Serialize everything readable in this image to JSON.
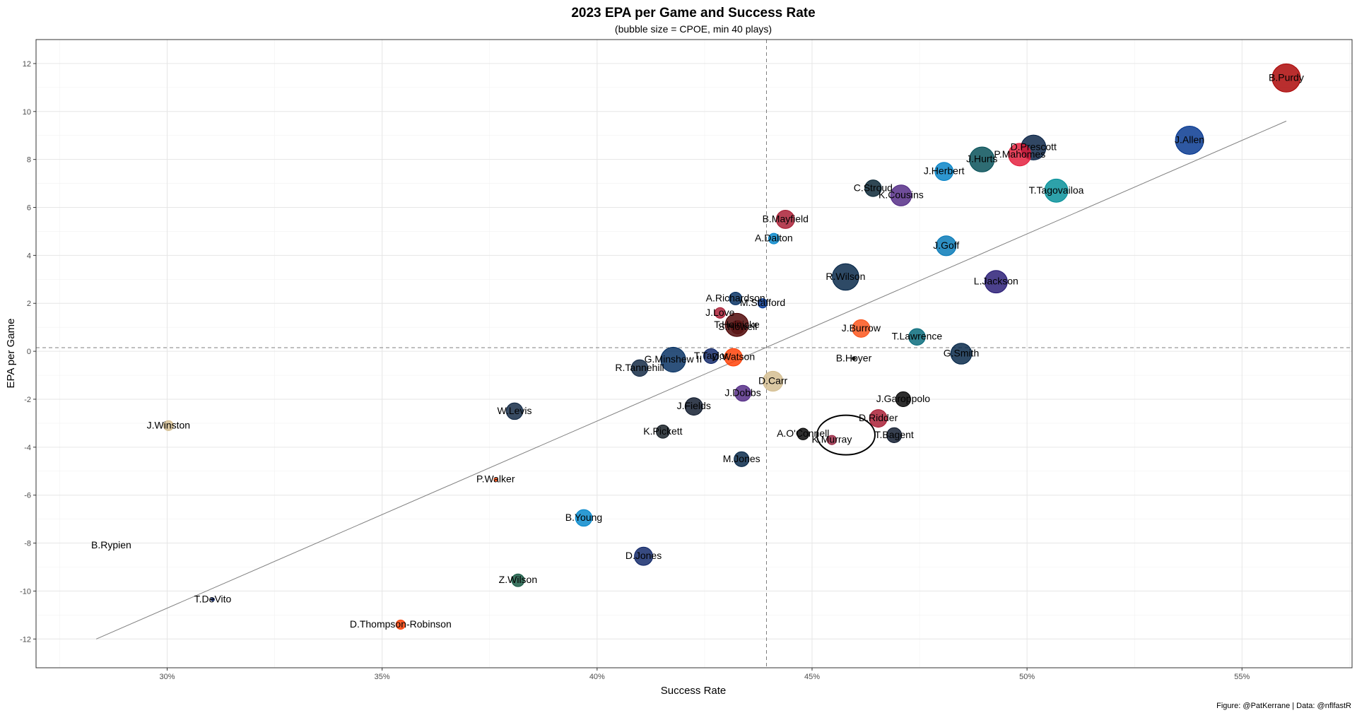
{
  "chart_data": {
    "type": "scatter",
    "title": "2023 EPA per Game and Success Rate",
    "subtitle": "(bubble size = CPOE, min 40 plays)",
    "xlabel": "Success Rate",
    "ylabel": "EPA per Game",
    "caption": "Figure: @PatKerrane | Data: @nflfastR",
    "xlim": [
      0.2695,
      0.5756
    ],
    "ylim": [
      -13.2,
      13.0
    ],
    "x_ticks": [
      0.3,
      0.35,
      0.4,
      0.45,
      0.5,
      0.55
    ],
    "x_tick_labels": [
      "30%",
      "35%",
      "40%",
      "45%",
      "50%",
      "55%"
    ],
    "y_ticks": [
      -12,
      -10,
      -8,
      -6,
      -4,
      -2,
      0,
      2,
      4,
      6,
      8,
      10,
      12
    ],
    "y_tick_labels": [
      "-12",
      "-10",
      "-8",
      "-6",
      "-4",
      "-2",
      "0",
      "2",
      "4",
      "6",
      "8",
      "10",
      "12"
    ],
    "grid": true,
    "legend": "none",
    "mean_lines": {
      "x": 0.4394,
      "y": 0.15
    },
    "trend_line": {
      "x": [
        0.2835,
        0.5603
      ],
      "y": [
        -12.0,
        9.6
      ]
    },
    "highlight": {
      "label": "K.Murray",
      "shape": "ellipse"
    },
    "points": [
      {
        "label": "B.Purdy",
        "x": 0.5603,
        "y": 11.4,
        "cpoe": 8.5,
        "color": "#AA0000"
      },
      {
        "label": "J.Allen",
        "x": 0.5378,
        "y": 8.8,
        "cpoe": 8.5,
        "color": "#00338D"
      },
      {
        "label": "D.Prescott",
        "x": 0.5015,
        "y": 8.5,
        "cpoe": 7.5,
        "color": "#041E42"
      },
      {
        "label": "P.Mahomes",
        "x": 0.4983,
        "y": 8.2,
        "cpoe": 6.8,
        "color": "#E31837"
      },
      {
        "label": "J.Hurts",
        "x": 0.4895,
        "y": 8.0,
        "cpoe": 7.5,
        "color": "#004C54"
      },
      {
        "label": "J.Herbert",
        "x": 0.4807,
        "y": 7.5,
        "cpoe": 5.5,
        "color": "#0080C6"
      },
      {
        "label": "C.Stroud",
        "x": 0.4642,
        "y": 6.8,
        "cpoe": 5.0,
        "color": "#03202F"
      },
      {
        "label": "K.Cousins",
        "x": 0.4707,
        "y": 6.5,
        "cpoe": 6.3,
        "color": "#4F2683"
      },
      {
        "label": "T.Tagovailoa",
        "x": 0.5068,
        "y": 6.7,
        "cpoe": 7.0,
        "color": "#008E97"
      },
      {
        "label": "B.Mayfield",
        "x": 0.4438,
        "y": 5.5,
        "cpoe": 5.5,
        "color": "#A71930"
      },
      {
        "label": "A.Dalton",
        "x": 0.4411,
        "y": 4.7,
        "cpoe": 3.2,
        "color": "#0085CA"
      },
      {
        "label": "J.Goff",
        "x": 0.4812,
        "y": 4.4,
        "cpoe": 6.0,
        "color": "#0076B6"
      },
      {
        "label": "R.Wilson",
        "x": 0.4578,
        "y": 3.1,
        "cpoe": 8.0,
        "color": "#002244"
      },
      {
        "label": "L.Jackson",
        "x": 0.4928,
        "y": 2.9,
        "cpoe": 6.8,
        "color": "#241773"
      },
      {
        "label": "A.Richardson",
        "x": 0.4322,
        "y": 2.2,
        "cpoe": 3.8,
        "color": "#002C5F"
      },
      {
        "label": "M.Stafford",
        "x": 0.4385,
        "y": 2.0,
        "cpoe": 2.8,
        "color": "#003594"
      },
      {
        "label": "J.Love",
        "x": 0.4286,
        "y": 1.6,
        "cpoe": 3.2,
        "color": "#A71930"
      },
      {
        "label": "T.Heinicke",
        "x": 0.4325,
        "y": 1.1,
        "cpoe": 7.0,
        "color": "#4A0000"
      },
      {
        "label": "S.Howell",
        "x": 0.4327,
        "y": 1.0,
        "cpoe": 4.0,
        "color": "#5A1414"
      },
      {
        "label": "J.Burrow",
        "x": 0.4614,
        "y": 0.95,
        "cpoe": 5.3,
        "color": "#FB4F14"
      },
      {
        "label": "T.Lawrence",
        "x": 0.4744,
        "y": 0.6,
        "cpoe": 5.0,
        "color": "#006778"
      },
      {
        "label": "G.Smith",
        "x": 0.4847,
        "y": -0.1,
        "cpoe": 6.3,
        "color": "#002244"
      },
      {
        "label": "B.Hoyer",
        "x": 0.4597,
        "y": -0.3,
        "cpoe": 1.0,
        "color": "#000000"
      },
      {
        "label": "G.Minshew II",
        "x": 0.4177,
        "y": -0.35,
        "cpoe": 7.5,
        "color": "#002C5F"
      },
      {
        "label": "D.Watson",
        "x": 0.4317,
        "y": -0.25,
        "cpoe": 5.3,
        "color": "#FF3C00"
      },
      {
        "label": "T.Taylor",
        "x": 0.4265,
        "y": -0.2,
        "cpoe": 4.5,
        "color": "#0B2265"
      },
      {
        "label": "R.Tannehill",
        "x": 0.4099,
        "y": -0.7,
        "cpoe": 5.0,
        "color": "#0C2340"
      },
      {
        "label": "D.Carr",
        "x": 0.4409,
        "y": -1.25,
        "cpoe": 6.0,
        "color": "#D3BC8D"
      },
      {
        "label": "J.Dobbs",
        "x": 0.4339,
        "y": -1.75,
        "cpoe": 4.8,
        "color": "#4F2683"
      },
      {
        "label": "J.Garoppolo",
        "x": 0.4712,
        "y": -2.0,
        "cpoe": 4.5,
        "color": "#000000"
      },
      {
        "label": "W.Levis",
        "x": 0.3808,
        "y": -2.5,
        "cpoe": 5.0,
        "color": "#0C2340"
      },
      {
        "label": "J.Fields",
        "x": 0.4225,
        "y": -2.3,
        "cpoe": 5.3,
        "color": "#0B162A"
      },
      {
        "label": "D.Ridder",
        "x": 0.4654,
        "y": -2.8,
        "cpoe": 5.3,
        "color": "#A71930"
      },
      {
        "label": "J.Winston",
        "x": 0.3003,
        "y": -3.1,
        "cpoe": 3.0,
        "color": "#D3BC8D"
      },
      {
        "label": "K.Pickett",
        "x": 0.4153,
        "y": -3.35,
        "cpoe": 4.0,
        "color": "#101820"
      },
      {
        "label": "A.O'Connell",
        "x": 0.4479,
        "y": -3.45,
        "cpoe": 3.5,
        "color": "#000000"
      },
      {
        "label": "T.Bagent",
        "x": 0.4691,
        "y": -3.5,
        "cpoe": 4.5,
        "color": "#0B162A"
      },
      {
        "label": "K.Murray",
        "x": 0.4546,
        "y": -3.7,
        "cpoe": 2.8,
        "color": "#97233F"
      },
      {
        "label": "M.Jones",
        "x": 0.4336,
        "y": -4.5,
        "cpoe": 4.5,
        "color": "#002244"
      },
      {
        "label": "P.Walker",
        "x": 0.3764,
        "y": -5.35,
        "cpoe": 1.0,
        "color": "#FB4F14"
      },
      {
        "label": "B.Young",
        "x": 0.3969,
        "y": -6.95,
        "cpoe": 5.0,
        "color": "#0085CA"
      },
      {
        "label": "B.Rypien",
        "x": 0.287,
        "y": -8.1,
        "cpoe": 0.0,
        "color": "#AA0000"
      },
      {
        "label": "D.Jones",
        "x": 0.4108,
        "y": -8.55,
        "cpoe": 5.5,
        "color": "#0B2265"
      },
      {
        "label": "Z.Wilson",
        "x": 0.3816,
        "y": -9.55,
        "cpoe": 3.8,
        "color": "#125740"
      },
      {
        "label": "T.DeVito",
        "x": 0.3106,
        "y": -10.35,
        "cpoe": 1.0,
        "color": "#0B2265"
      },
      {
        "label": "D.Thompson-Robinson",
        "x": 0.3543,
        "y": -11.4,
        "cpoe": 2.8,
        "color": "#FF3C00"
      }
    ]
  }
}
